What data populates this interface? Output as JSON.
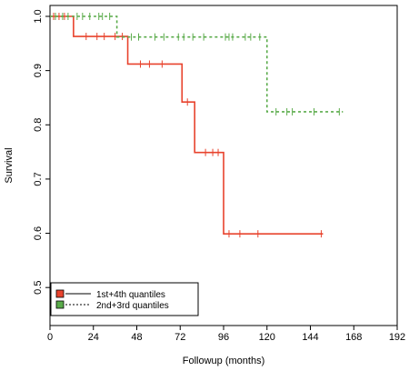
{
  "chart_data": {
    "type": "line",
    "subtype": "kaplan-meier step",
    "title": "",
    "xlabel": "Followup (months)",
    "ylabel": "Survival",
    "xlim": [
      0,
      192
    ],
    "ylim": [
      0.45,
      1.0
    ],
    "x_ticks": [
      0,
      24,
      48,
      72,
      96,
      120,
      144,
      168,
      192
    ],
    "y_ticks": [
      0.5,
      0.6,
      0.7,
      0.8,
      0.9,
      1.0
    ],
    "grid": false,
    "legend_position": "bottom-left",
    "series": [
      {
        "name": "1st+4th quantiles",
        "color": "#e8432d",
        "line_style": "solid",
        "steps": [
          [
            0,
            1.0
          ],
          [
            13,
            0.963
          ],
          [
            43,
            0.912
          ],
          [
            73,
            0.842
          ],
          [
            80,
            0.749
          ],
          [
            96,
            0.599
          ],
          [
            151,
            0.599
          ]
        ],
        "censored": [
          [
            2,
            1.0
          ],
          [
            5,
            1.0
          ],
          [
            8,
            1.0
          ],
          [
            20,
            0.963
          ],
          [
            26,
            0.963
          ],
          [
            30,
            0.963
          ],
          [
            36,
            0.963
          ],
          [
            40,
            0.963
          ],
          [
            50,
            0.912
          ],
          [
            55,
            0.912
          ],
          [
            62,
            0.912
          ],
          [
            76,
            0.842
          ],
          [
            86,
            0.749
          ],
          [
            90,
            0.749
          ],
          [
            93,
            0.749
          ],
          [
            99,
            0.599
          ],
          [
            105,
            0.599
          ],
          [
            115,
            0.599
          ],
          [
            150,
            0.599
          ]
        ]
      },
      {
        "name": "2nd+3rd quantiles",
        "color": "#5aab4a",
        "line_style": "dashed",
        "steps": [
          [
            0,
            1.0
          ],
          [
            37,
            0.962
          ],
          [
            120,
            0.824
          ],
          [
            162,
            0.824
          ]
        ],
        "censored": [
          [
            3,
            1.0
          ],
          [
            7,
            1.0
          ],
          [
            10,
            1.0
          ],
          [
            15,
            1.0
          ],
          [
            18,
            1.0
          ],
          [
            22,
            1.0
          ],
          [
            27,
            1.0
          ],
          [
            29,
            1.0
          ],
          [
            33,
            1.0
          ],
          [
            45,
            0.962
          ],
          [
            49,
            0.962
          ],
          [
            58,
            0.962
          ],
          [
            63,
            0.962
          ],
          [
            71,
            0.962
          ],
          [
            74,
            0.962
          ],
          [
            79,
            0.962
          ],
          [
            85,
            0.962
          ],
          [
            97,
            0.962
          ],
          [
            99,
            0.962
          ],
          [
            101,
            0.962
          ],
          [
            108,
            0.962
          ],
          [
            111,
            0.962
          ],
          [
            116,
            0.962
          ],
          [
            125,
            0.824
          ],
          [
            131,
            0.824
          ],
          [
            134,
            0.824
          ],
          [
            146,
            0.824
          ],
          [
            160,
            0.824
          ]
        ]
      }
    ]
  }
}
